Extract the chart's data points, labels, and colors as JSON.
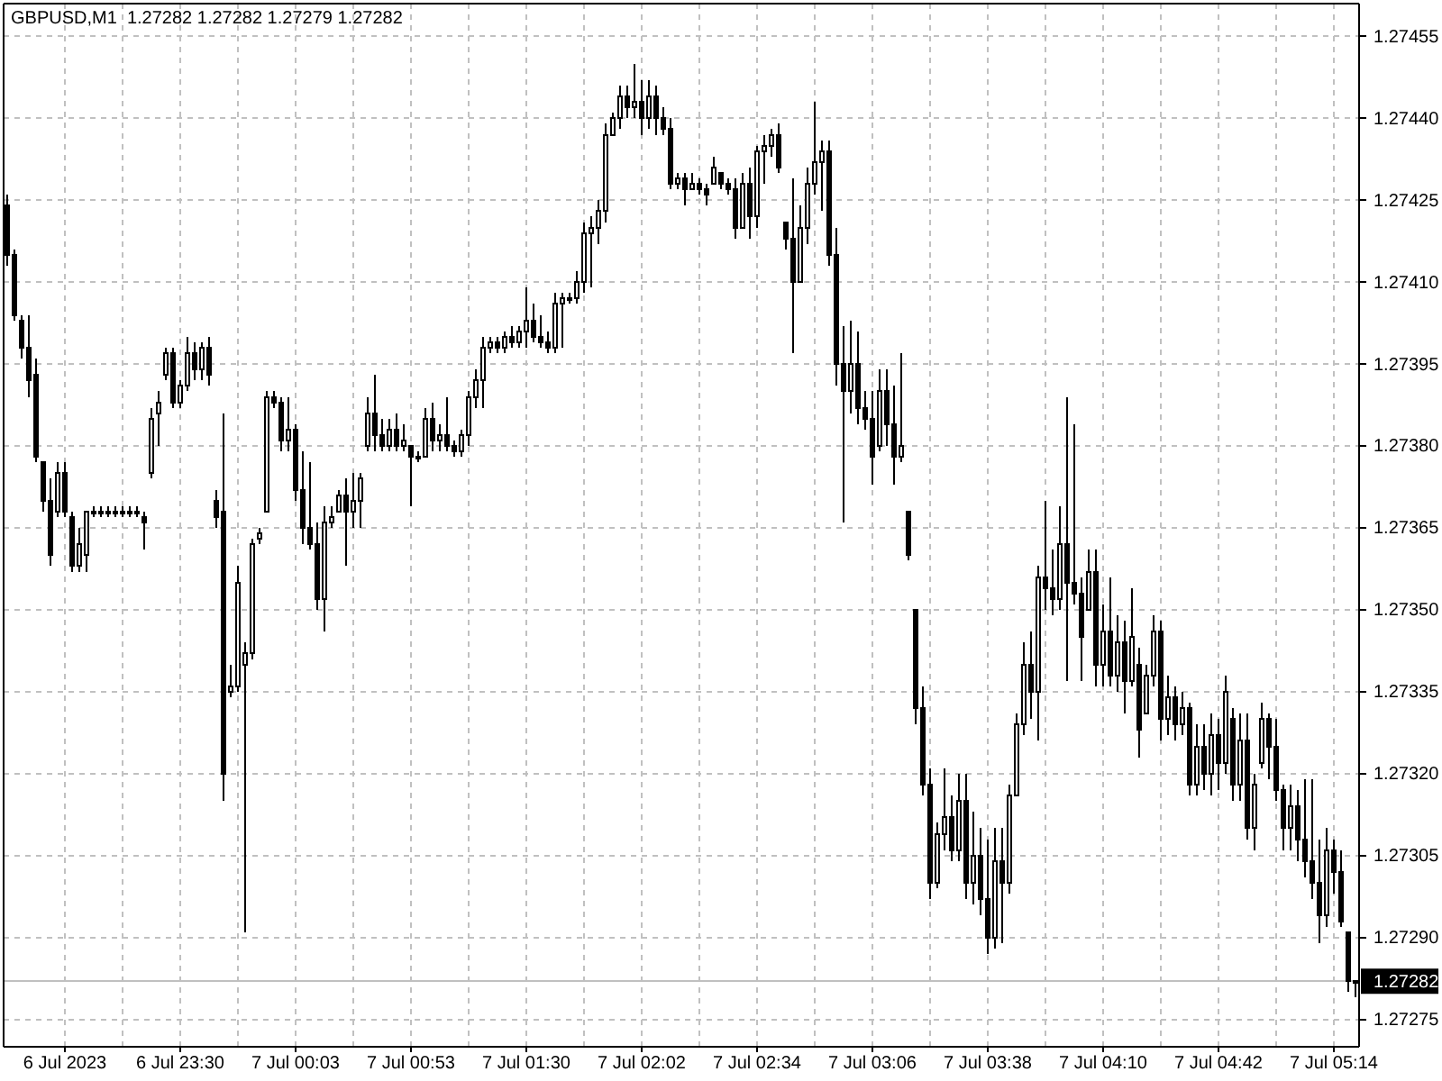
{
  "chart_data": {
    "type": "candlestick",
    "title": "GBPUSD,M1  1.27282 1.27282 1.27279 1.27282",
    "color": "#000000",
    "categories": [
      null,
      null,
      null,
      null,
      null,
      null,
      null,
      null,
      "6 Jul 2023",
      null,
      null,
      null,
      null,
      null,
      null,
      null,
      null,
      null,
      null,
      null,
      null,
      null,
      null,
      null,
      "6 Jul 23:30",
      null,
      null,
      null,
      null,
      null,
      null,
      null,
      null,
      null,
      null,
      null,
      null,
      null,
      null,
      null,
      "7 Jul 00:03",
      null,
      null,
      null,
      null,
      null,
      null,
      null,
      null,
      null,
      null,
      null,
      null,
      null,
      null,
      null,
      "7 Jul 00:53",
      null,
      null,
      null,
      null,
      null,
      null,
      null,
      null,
      null,
      null,
      null,
      null,
      null,
      null,
      null,
      "7 Jul 01:30",
      null,
      null,
      null,
      null,
      null,
      null,
      null,
      null,
      null,
      null,
      null,
      null,
      null,
      null,
      null,
      "7 Jul 02:02",
      null,
      null,
      null,
      null,
      null,
      null,
      null,
      null,
      null,
      null,
      null,
      null,
      null,
      null,
      null,
      "7 Jul 02:34",
      null,
      null,
      null,
      null,
      null,
      null,
      null,
      null,
      null,
      null,
      null,
      null,
      null,
      null,
      null,
      "7 Jul 03:06",
      null,
      null,
      null,
      null,
      null,
      null,
      null,
      null,
      null,
      null,
      null,
      null,
      null,
      null,
      null,
      "7 Jul 03:38",
      null,
      null,
      null,
      null,
      null,
      null,
      null,
      null,
      null,
      null,
      null,
      null,
      null,
      null,
      null,
      "7 Jul 04:10",
      null,
      null,
      null,
      null,
      null,
      null,
      null,
      null,
      null,
      null,
      null,
      null,
      null,
      null,
      null,
      "7 Jul 04:42",
      null,
      null,
      null,
      null,
      null,
      null,
      null,
      null,
      null,
      null,
      null,
      null,
      null,
      null,
      null,
      "7 Jul 05:14",
      null,
      null,
      null
    ],
    "ohlc": [
      [
        1.27424,
        1.27426,
        1.27413,
        1.27415
      ],
      [
        1.27415,
        1.27416,
        1.27403,
        1.27404
      ],
      [
        1.27403,
        1.27404,
        1.27396,
        1.27398
      ],
      [
        1.27398,
        1.27404,
        1.27389,
        1.27392
      ],
      [
        1.27393,
        1.27396,
        1.27377,
        1.27378
      ],
      [
        1.27377,
        1.27377,
        1.27368,
        1.2737
      ],
      [
        1.2737,
        1.27374,
        1.27358,
        1.2736
      ],
      [
        1.27368,
        1.27377,
        1.27367,
        1.27375
      ],
      [
        1.27375,
        1.27377,
        1.27367,
        1.27368
      ],
      [
        1.27367,
        1.27368,
        1.27357,
        1.27358
      ],
      [
        1.27358,
        1.27365,
        1.27357,
        1.27362
      ],
      [
        1.2736,
        1.27368,
        1.27357,
        1.27368
      ],
      [
        1.27368,
        1.27369,
        1.27367,
        1.27368
      ],
      [
        1.27368,
        1.27369,
        1.27367,
        1.27368
      ],
      [
        1.27368,
        1.27369,
        1.27367,
        1.27368
      ],
      [
        1.27368,
        1.27369,
        1.27367,
        1.27368
      ],
      [
        1.27368,
        1.27369,
        1.27367,
        1.27368
      ],
      [
        1.27368,
        1.27369,
        1.27367,
        1.27368
      ],
      [
        1.27368,
        1.27369,
        1.27367,
        1.27368
      ],
      [
        1.27367,
        1.27368,
        1.27361,
        1.27366
      ],
      [
        1.27375,
        1.27387,
        1.27374,
        1.27385
      ],
      [
        1.27386,
        1.2739,
        1.2738,
        1.27388
      ],
      [
        1.27393,
        1.27398,
        1.27392,
        1.27397
      ],
      [
        1.27397,
        1.27398,
        1.27387,
        1.27388
      ],
      [
        1.27388,
        1.27392,
        1.27387,
        1.27391
      ],
      [
        1.27391,
        1.274,
        1.2739,
        1.27397
      ],
      [
        1.27397,
        1.27399,
        1.27392,
        1.27394
      ],
      [
        1.27394,
        1.27399,
        1.27392,
        1.27398
      ],
      [
        1.27398,
        1.274,
        1.27391,
        1.27393
      ],
      [
        1.2737,
        1.27372,
        1.27365,
        1.27367
      ],
      [
        1.27368,
        1.27386,
        1.27315,
        1.2732
      ],
      [
        1.27335,
        1.2734,
        1.27334,
        1.27336
      ],
      [
        1.27336,
        1.27358,
        1.27335,
        1.27355
      ],
      [
        1.2734,
        1.27344,
        1.27291,
        1.27342
      ],
      [
        1.27342,
        1.27363,
        1.27341,
        1.27362
      ],
      [
        1.27363,
        1.27365,
        1.27362,
        1.27364
      ],
      [
        1.27368,
        1.2739,
        1.27368,
        1.27389
      ],
      [
        1.27389,
        1.2739,
        1.27387,
        1.27388
      ],
      [
        1.27388,
        1.27389,
        1.27379,
        1.27381
      ],
      [
        1.27381,
        1.27389,
        1.27379,
        1.27383
      ],
      [
        1.27383,
        1.27384,
        1.2737,
        1.27372
      ],
      [
        1.27372,
        1.27379,
        1.27362,
        1.27365
      ],
      [
        1.27365,
        1.27377,
        1.27361,
        1.27362
      ],
      [
        1.27362,
        1.27366,
        1.2735,
        1.27352
      ],
      [
        1.27352,
        1.27369,
        1.27346,
        1.27366
      ],
      [
        1.27366,
        1.27369,
        1.27365,
        1.27367
      ],
      [
        1.27368,
        1.27372,
        1.27368,
        1.27371
      ],
      [
        1.27371,
        1.27374,
        1.27358,
        1.27368
      ],
      [
        1.27368,
        1.27375,
        1.27365,
        1.2737
      ],
      [
        1.2737,
        1.27375,
        1.27365,
        1.27374
      ],
      [
        1.2738,
        1.27389,
        1.27379,
        1.27386
      ],
      [
        1.27386,
        1.27393,
        1.27379,
        1.27382
      ],
      [
        1.27382,
        1.27385,
        1.27379,
        1.2738
      ],
      [
        1.2738,
        1.27385,
        1.27379,
        1.27383
      ],
      [
        1.27383,
        1.27386,
        1.27379,
        1.2738
      ],
      [
        1.2738,
        1.27384,
        1.27379,
        1.27381
      ],
      [
        1.2738,
        1.2738,
        1.27369,
        1.27378
      ],
      [
        1.27378,
        1.27379,
        1.27377,
        1.27378
      ],
      [
        1.27378,
        1.27387,
        1.27378,
        1.27385
      ],
      [
        1.27385,
        1.27388,
        1.27379,
        1.27381
      ],
      [
        1.27381,
        1.27384,
        1.27379,
        1.27382
      ],
      [
        1.27382,
        1.27389,
        1.27379,
        1.2738
      ],
      [
        1.2738,
        1.27381,
        1.27378,
        1.27379
      ],
      [
        1.27379,
        1.27383,
        1.27378,
        1.27382
      ],
      [
        1.27382,
        1.2739,
        1.2738,
        1.27389
      ],
      [
        1.27389,
        1.27394,
        1.27387,
        1.27392
      ],
      [
        1.27392,
        1.274,
        1.27387,
        1.27398
      ],
      [
        1.27398,
        1.274,
        1.27397,
        1.27399
      ],
      [
        1.27399,
        1.274,
        1.27397,
        1.27398
      ],
      [
        1.27398,
        1.27401,
        1.27397,
        1.274
      ],
      [
        1.274,
        1.27402,
        1.27398,
        1.27399
      ],
      [
        1.27399,
        1.27402,
        1.27398,
        1.27401
      ],
      [
        1.27401,
        1.27409,
        1.27398,
        1.27403
      ],
      [
        1.27403,
        1.27406,
        1.27399,
        1.274
      ],
      [
        1.274,
        1.27404,
        1.27398,
        1.27399
      ],
      [
        1.27399,
        1.27401,
        1.27397,
        1.27398
      ],
      [
        1.27398,
        1.27408,
        1.27397,
        1.27406
      ],
      [
        1.27406,
        1.27408,
        1.27398,
        1.27407
      ],
      [
        1.27407,
        1.27408,
        1.27406,
        1.27407
      ],
      [
        1.27407,
        1.27412,
        1.27406,
        1.2741
      ],
      [
        1.2741,
        1.27421,
        1.27408,
        1.27419
      ],
      [
        1.27419,
        1.27422,
        1.27409,
        1.2742
      ],
      [
        1.2742,
        1.27425,
        1.27417,
        1.27423
      ],
      [
        1.27423,
        1.27439,
        1.27421,
        1.27437
      ],
      [
        1.27437,
        1.27441,
        1.27437,
        1.2744
      ],
      [
        1.2744,
        1.27446,
        1.27438,
        1.27444
      ],
      [
        1.27444,
        1.27446,
        1.2744,
        1.27442
      ],
      [
        1.27442,
        1.2745,
        1.2744,
        1.27443
      ],
      [
        1.27443,
        1.27447,
        1.27437,
        1.2744
      ],
      [
        1.2744,
        1.27447,
        1.27438,
        1.27444
      ],
      [
        1.27444,
        1.27446,
        1.27437,
        1.2744
      ],
      [
        1.2744,
        1.27442,
        1.27437,
        1.27438
      ],
      [
        1.27438,
        1.2744,
        1.27427,
        1.27428
      ],
      [
        1.27428,
        1.2743,
        1.27427,
        1.27429
      ],
      [
        1.27429,
        1.2743,
        1.27424,
        1.27427
      ],
      [
        1.27427,
        1.2743,
        1.27427,
        1.27428
      ],
      [
        1.27428,
        1.27429,
        1.27426,
        1.27427
      ],
      [
        1.27427,
        1.27428,
        1.27424,
        1.27426
      ],
      [
        1.27428,
        1.27433,
        1.27428,
        1.27431
      ],
      [
        1.2743,
        1.2743,
        1.27427,
        1.27428
      ],
      [
        1.27428,
        1.27429,
        1.27426,
        1.27427
      ],
      [
        1.27427,
        1.27429,
        1.27418,
        1.2742
      ],
      [
        1.2742,
        1.2743,
        1.2742,
        1.27428
      ],
      [
        1.27428,
        1.27431,
        1.27418,
        1.27422
      ],
      [
        1.27422,
        1.27435,
        1.2742,
        1.27434
      ],
      [
        1.27434,
        1.27437,
        1.27428,
        1.27435
      ],
      [
        1.27435,
        1.27438,
        1.27433,
        1.27437
      ],
      [
        1.27437,
        1.27439,
        1.2743,
        1.27431
      ],
      [
        1.27421,
        1.27421,
        1.27416,
        1.27418
      ],
      [
        1.27418,
        1.27429,
        1.27397,
        1.2741
      ],
      [
        1.2741,
        1.27424,
        1.2741,
        1.2742
      ],
      [
        1.2742,
        1.27431,
        1.27417,
        1.27428
      ],
      [
        1.27428,
        1.27443,
        1.27426,
        1.27432
      ],
      [
        1.27432,
        1.27436,
        1.27423,
        1.27434
      ],
      [
        1.27434,
        1.27436,
        1.27413,
        1.27415
      ],
      [
        1.27415,
        1.2742,
        1.27391,
        1.27395
      ],
      [
        1.27395,
        1.27402,
        1.27366,
        1.2739
      ],
      [
        1.2739,
        1.27403,
        1.27386,
        1.27395
      ],
      [
        1.27395,
        1.27401,
        1.27384,
        1.27387
      ],
      [
        1.27387,
        1.2739,
        1.27383,
        1.27385
      ],
      [
        1.27385,
        1.2739,
        1.27373,
        1.27378
      ],
      [
        1.2738,
        1.27394,
        1.27379,
        1.2739
      ],
      [
        1.2739,
        1.27394,
        1.2738,
        1.27384
      ],
      [
        1.27384,
        1.27391,
        1.27373,
        1.27378
      ],
      [
        1.27378,
        1.27397,
        1.27377,
        1.2738
      ],
      [
        1.27368,
        1.27368,
        1.27359,
        1.2736
      ],
      [
        1.2735,
        1.2735,
        1.27329,
        1.27332
      ],
      [
        1.27332,
        1.27336,
        1.27316,
        1.27318
      ],
      [
        1.27318,
        1.27321,
        1.27297,
        1.273
      ],
      [
        1.273,
        1.27311,
        1.27299,
        1.27309
      ],
      [
        1.27309,
        1.27321,
        1.27306,
        1.27312
      ],
      [
        1.27312,
        1.27316,
        1.27304,
        1.27306
      ],
      [
        1.27306,
        1.2732,
        1.27304,
        1.27315
      ],
      [
        1.27315,
        1.2732,
        1.27297,
        1.273
      ],
      [
        1.273,
        1.27313,
        1.27296,
        1.27305
      ],
      [
        1.27305,
        1.2731,
        1.27294,
        1.27297
      ],
      [
        1.27297,
        1.27308,
        1.27287,
        1.2729
      ],
      [
        1.2729,
        1.2731,
        1.27288,
        1.27304
      ],
      [
        1.27304,
        1.2731,
        1.27289,
        1.273
      ],
      [
        1.273,
        1.27318,
        1.27298,
        1.27316
      ],
      [
        1.27316,
        1.27331,
        1.27316,
        1.27329
      ],
      [
        1.27329,
        1.27344,
        1.27327,
        1.2734
      ],
      [
        1.2734,
        1.27346,
        1.2733,
        1.27335
      ],
      [
        1.27335,
        1.27358,
        1.27326,
        1.27356
      ],
      [
        1.27356,
        1.2737,
        1.2735,
        1.27354
      ],
      [
        1.27354,
        1.27361,
        1.27349,
        1.27352
      ],
      [
        1.27352,
        1.27369,
        1.2735,
        1.27362
      ],
      [
        1.27362,
        1.27389,
        1.27337,
        1.27355
      ],
      [
        1.27355,
        1.27384,
        1.27351,
        1.27353
      ],
      [
        1.27353,
        1.27356,
        1.27337,
        1.27345
      ],
      [
        1.2735,
        1.27361,
        1.2735,
        1.27357
      ],
      [
        1.27357,
        1.27361,
        1.27336,
        1.2734
      ],
      [
        1.2734,
        1.27351,
        1.27336,
        1.27346
      ],
      [
        1.27346,
        1.27356,
        1.27336,
        1.27338
      ],
      [
        1.27338,
        1.27349,
        1.27335,
        1.27344
      ],
      [
        1.27344,
        1.27348,
        1.27331,
        1.27337
      ],
      [
        1.27337,
        1.27354,
        1.27336,
        1.27345
      ],
      [
        1.2734,
        1.27343,
        1.27323,
        1.27328
      ],
      [
        1.27331,
        1.2734,
        1.27331,
        1.27338
      ],
      [
        1.27338,
        1.27349,
        1.27336,
        1.27346
      ],
      [
        1.27346,
        1.27348,
        1.27326,
        1.2733
      ],
      [
        1.2733,
        1.27338,
        1.27327,
        1.27334
      ],
      [
        1.27334,
        1.27336,
        1.27326,
        1.27329
      ],
      [
        1.27329,
        1.27335,
        1.27327,
        1.27332
      ],
      [
        1.27332,
        1.27333,
        1.27316,
        1.27318
      ],
      [
        1.27318,
        1.27329,
        1.27316,
        1.27325
      ],
      [
        1.27325,
        1.27329,
        1.27317,
        1.2732
      ],
      [
        1.2732,
        1.27331,
        1.27316,
        1.27327
      ],
      [
        1.27327,
        1.2733,
        1.27317,
        1.27322
      ],
      [
        1.27322,
        1.27338,
        1.2732,
        1.27335
      ],
      [
        1.2733,
        1.27332,
        1.27315,
        1.27318
      ],
      [
        1.27318,
        1.27331,
        1.27315,
        1.27326
      ],
      [
        1.27326,
        1.27331,
        1.27308,
        1.2731
      ],
      [
        1.2731,
        1.2732,
        1.27306,
        1.27318
      ],
      [
        1.27322,
        1.27333,
        1.27321,
        1.2733
      ],
      [
        1.2733,
        1.27331,
        1.27319,
        1.27325
      ],
      [
        1.27325,
        1.2733,
        1.27315,
        1.27317
      ],
      [
        1.27317,
        1.27318,
        1.27306,
        1.2731
      ],
      [
        1.2731,
        1.27318,
        1.27306,
        1.27314
      ],
      [
        1.27314,
        1.27317,
        1.27304,
        1.27308
      ],
      [
        1.27308,
        1.27319,
        1.27301,
        1.27304
      ],
      [
        1.27304,
        1.27319,
        1.27297,
        1.273
      ],
      [
        1.273,
        1.27308,
        1.27289,
        1.27294
      ],
      [
        1.27294,
        1.2731,
        1.27292,
        1.27306
      ],
      [
        1.27306,
        1.27308,
        1.27298,
        1.27302
      ],
      [
        1.27302,
        1.27306,
        1.27292,
        1.27293
      ],
      [
        1.27291,
        1.27291,
        1.2728,
        1.27282
      ],
      [
        1.27282,
        1.27282,
        1.27279,
        1.27282
      ]
    ],
    "ylim": [
      1.2727,
      1.27461
    ],
    "yticks": [
      {
        "value": 1.27275,
        "label": "1.27275"
      },
      {
        "value": 1.2729,
        "label": "1.27290"
      },
      {
        "value": 1.27305,
        "label": "1.27305"
      },
      {
        "value": 1.2732,
        "label": "1.27320"
      },
      {
        "value": 1.27335,
        "label": "1.27335"
      },
      {
        "value": 1.2735,
        "label": "1.27350"
      },
      {
        "value": 1.27365,
        "label": "1.27365"
      },
      {
        "value": 1.2738,
        "label": "1.27380"
      },
      {
        "value": 1.27395,
        "label": "1.27395"
      },
      {
        "value": 1.2741,
        "label": "1.27410"
      },
      {
        "value": 1.27425,
        "label": "1.27425"
      },
      {
        "value": 1.2744,
        "label": "1.27440"
      },
      {
        "value": 1.27455,
        "label": "1.27455"
      }
    ],
    "ref_lines": [
      {
        "axis": "y",
        "value": 1.27282,
        "label": "1.27282",
        "color": "#c0c0c0"
      }
    ],
    "grid": true
  }
}
